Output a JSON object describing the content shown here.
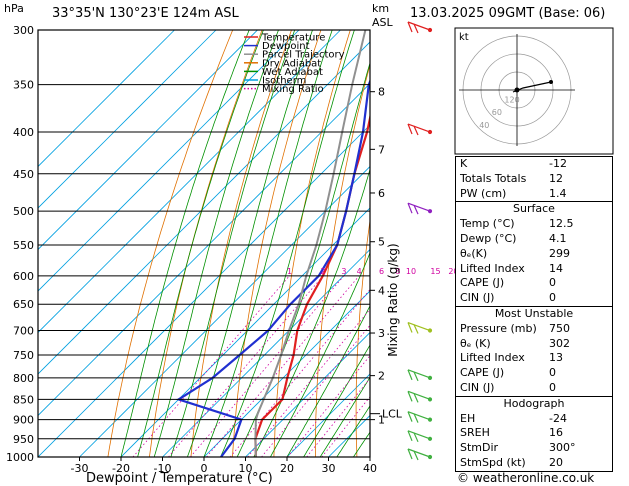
{
  "header": {
    "location": "33°35'N  130°23'E  124m  ASL",
    "datetime": "13.03.2025  09GMT  (Base: 06)",
    "hpa_unit": "hPa",
    "km_unit": "km",
    "asl_unit": "ASL",
    "footer": "© weatheronline.co.uk"
  },
  "legend": [
    {
      "label": "Temperature",
      "color": "#e02020"
    },
    {
      "label": "Dewpoint",
      "color": "#2030d0"
    },
    {
      "label": "Parcel Trajectory",
      "color": "#909090"
    },
    {
      "label": "Dry Adiabat",
      "color": "#e07000"
    },
    {
      "label": "Wet Adiabat",
      "color": "#009000"
    },
    {
      "label": "Isotherm",
      "color": "#00a0e0"
    },
    {
      "label": "Mixing Ratio",
      "color": "#d000a0"
    }
  ],
  "chart_data": {
    "type": "line",
    "title": "",
    "xlabel": "Dewpoint / Temperature (°C)",
    "ylabel": "hPa",
    "ylabel_right": "Mixing Ratio (g/kg)",
    "xlim": [
      -40,
      40
    ],
    "x_ticks": [
      -30,
      -20,
      -10,
      0,
      10,
      20,
      30,
      40
    ],
    "pressure_levels": [
      300,
      350,
      400,
      450,
      500,
      550,
      600,
      650,
      700,
      750,
      800,
      850,
      900,
      950,
      1000
    ],
    "height_km": [
      {
        "km": "8",
        "p": 357
      },
      {
        "km": "7",
        "p": 420
      },
      {
        "km": "6",
        "p": 475
      },
      {
        "km": "5",
        "p": 545
      },
      {
        "km": "4",
        "p": 625
      },
      {
        "km": "3",
        "p": 705
      },
      {
        "km": "2",
        "p": 795
      },
      {
        "km": "1",
        "p": 900
      }
    ],
    "lcl": {
      "label": "LCL",
      "p": 885
    },
    "mixing_ratio_labels": [
      "1",
      "2",
      "3",
      "4",
      "6",
      "8",
      "10",
      "15",
      "20",
      "25"
    ],
    "series": [
      {
        "name": "Temperature",
        "color": "#e02020",
        "points": [
          [
            1000,
            12.5
          ],
          [
            950,
            8
          ],
          [
            900,
            5
          ],
          [
            850,
            5
          ],
          [
            800,
            1
          ],
          [
            750,
            -3
          ],
          [
            700,
            -8
          ],
          [
            650,
            -12
          ],
          [
            600,
            -15
          ],
          [
            550,
            -19
          ],
          [
            500,
            -25
          ],
          [
            450,
            -32
          ],
          [
            400,
            -39
          ],
          [
            350,
            -48
          ],
          [
            300,
            -56
          ]
        ]
      },
      {
        "name": "Dewpoint",
        "color": "#2030d0",
        "points": [
          [
            1000,
            4.1
          ],
          [
            950,
            3
          ],
          [
            900,
            0
          ],
          [
            850,
            -20
          ],
          [
            800,
            -17
          ],
          [
            750,
            -16
          ],
          [
            700,
            -15
          ],
          [
            650,
            -16
          ],
          [
            600,
            -16
          ],
          [
            550,
            -19
          ],
          [
            500,
            -25
          ],
          [
            450,
            -32
          ],
          [
            400,
            -40
          ],
          [
            350,
            -50
          ],
          [
            300,
            -58
          ]
        ]
      },
      {
        "name": "Parcel Trajectory",
        "color": "#909090",
        "points": [
          [
            1000,
            12.5
          ],
          [
            950,
            8
          ],
          [
            900,
            3.5
          ],
          [
            885,
            2.5
          ],
          [
            850,
            0.5
          ],
          [
            800,
            -2.5
          ],
          [
            750,
            -6
          ],
          [
            700,
            -10
          ],
          [
            650,
            -14
          ],
          [
            600,
            -19
          ],
          [
            550,
            -24
          ],
          [
            500,
            -30
          ],
          [
            450,
            -37
          ],
          [
            400,
            -45
          ],
          [
            350,
            -54
          ],
          [
            300,
            -64
          ]
        ]
      }
    ]
  },
  "hodograph": {
    "unit": "kt",
    "ring_labels": [
      "40",
      "60",
      "120"
    ]
  },
  "indices": [
    {
      "label": "K",
      "value": "-12"
    },
    {
      "label": "Totals Totals",
      "value": "12"
    },
    {
      "label": "PW (cm)",
      "value": "1.4"
    }
  ],
  "surface": {
    "title": "Surface",
    "rows": [
      {
        "label": "Temp (°C)",
        "value": "12.5"
      },
      {
        "label": "Dewp (°C)",
        "value": "4.1"
      },
      {
        "label": "θₑ(K)",
        "value": "299"
      },
      {
        "label": "Lifted Index",
        "value": "14"
      },
      {
        "label": "CAPE (J)",
        "value": "0"
      },
      {
        "label": "CIN (J)",
        "value": "0"
      }
    ]
  },
  "most_unstable": {
    "title": "Most Unstable",
    "rows": [
      {
        "label": "Pressure (mb)",
        "value": "750"
      },
      {
        "label": "θₑ (K)",
        "value": "302"
      },
      {
        "label": "Lifted Index",
        "value": "13"
      },
      {
        "label": "CAPE (J)",
        "value": "0"
      },
      {
        "label": "CIN (J)",
        "value": "0"
      }
    ]
  },
  "hodograph_table": {
    "title": "Hodograph",
    "rows": [
      {
        "label": "EH",
        "value": "-24"
      },
      {
        "label": "SREH",
        "value": "16"
      },
      {
        "label": "StmDir",
        "value": "300°"
      },
      {
        "label": "StmSpd (kt)",
        "value": "20"
      }
    ]
  },
  "wind_barbs": [
    {
      "p": 300,
      "color": "#e02020"
    },
    {
      "p": 400,
      "color": "#e02020"
    },
    {
      "p": 500,
      "color": "#9020c0"
    },
    {
      "p": 700,
      "color": "#a0c020"
    },
    {
      "p": 800,
      "color": "#40b040"
    },
    {
      "p": 850,
      "color": "#40b040"
    },
    {
      "p": 900,
      "color": "#40b040"
    },
    {
      "p": 950,
      "color": "#40b040"
    },
    {
      "p": 1000,
      "color": "#40b040"
    }
  ]
}
